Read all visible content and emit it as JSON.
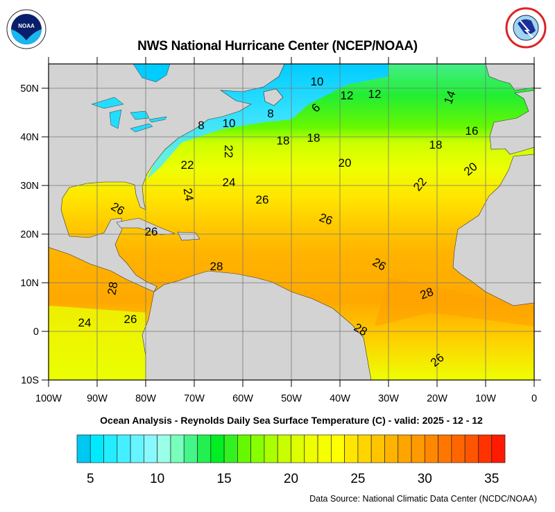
{
  "title": "NWS National Hurricane Center (NCEP/NOAA)",
  "subtitle": "Ocean Analysis - Reynolds Daily Sea Surface Temperature (C) - valid: 2025 - 12 - 12",
  "data_source": "Data Source: National Climatic Data Center (NCDC/NOAA)",
  "logos": {
    "left": "NOAA",
    "right": "NATIONAL WEATHER SERVICE"
  },
  "map": {
    "lon_range": [
      -100,
      0
    ],
    "lat_range": [
      -10,
      55
    ],
    "x_ticks": [
      {
        "lon": -100,
        "label": "100W"
      },
      {
        "lon": -90,
        "label": "90W"
      },
      {
        "lon": -80,
        "label": "80W"
      },
      {
        "lon": -70,
        "label": "70W"
      },
      {
        "lon": -60,
        "label": "60W"
      },
      {
        "lon": -50,
        "label": "50W"
      },
      {
        "lon": -40,
        "label": "40W"
      },
      {
        "lon": -30,
        "label": "30W"
      },
      {
        "lon": -20,
        "label": "20W"
      },
      {
        "lon": -10,
        "label": "10W"
      },
      {
        "lon": 0,
        "label": "0"
      }
    ],
    "y_ticks": [
      {
        "lat": 50,
        "label": "50N"
      },
      {
        "lat": 40,
        "label": "40N"
      },
      {
        "lat": 30,
        "label": "30N"
      },
      {
        "lat": 20,
        "label": "20N"
      },
      {
        "lat": 10,
        "label": "10N"
      },
      {
        "lat": 0,
        "label": "0"
      },
      {
        "lat": -10,
        "label": "10S"
      }
    ],
    "land_color": "#d3d3d3",
    "contour_labels": [
      "10",
      "12",
      "12",
      "14",
      "8",
      "6",
      "8",
      "10",
      "16",
      "18",
      "18",
      "18",
      "22",
      "20",
      "20",
      "22",
      "22",
      "24",
      "24",
      "26",
      "26",
      "26",
      "26",
      "28",
      "26",
      "28",
      "28",
      "24",
      "26",
      "28",
      "26"
    ]
  },
  "colorbar": {
    "min": 4,
    "max": 36,
    "ticks": [
      "5",
      "10",
      "15",
      "20",
      "25",
      "30",
      "35"
    ],
    "tick_values": [
      5,
      10,
      15,
      20,
      25,
      30,
      35
    ],
    "colors": [
      "#00c8f0",
      "#00eaff",
      "#22eeff",
      "#44f0ff",
      "#66f4ff",
      "#88f8ff",
      "#99ffe6",
      "#77ffbb",
      "#44f58a",
      "#22f050",
      "#00ee22",
      "#33f020",
      "#66f800",
      "#88ff00",
      "#aaff00",
      "#c8ff00",
      "#ddff00",
      "#eeff00",
      "#f5ff00",
      "#ffff00",
      "#ffe600",
      "#ffd500",
      "#ffc400",
      "#ffb300",
      "#ffa500",
      "#ff9900",
      "#ff8800",
      "#ff7700",
      "#ff6600",
      "#ff5500",
      "#ff3300",
      "#ff1a00"
    ]
  }
}
